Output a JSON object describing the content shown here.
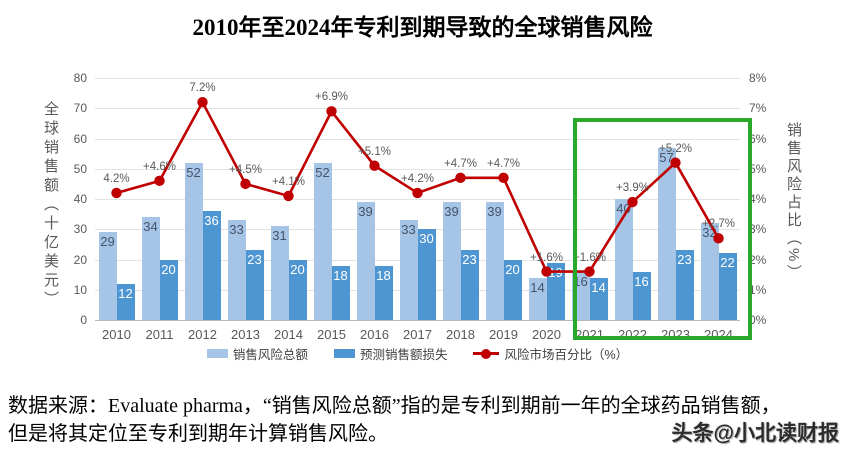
{
  "title": "2010年至2024年专利到期导致的全球销售风险",
  "chart_data": {
    "type": "bar",
    "subtype": "grouped-bars-with-line-overlay",
    "categories": [
      "2010",
      "2011",
      "2012",
      "2013",
      "2014",
      "2015",
      "2016",
      "2017",
      "2018",
      "2019",
      "2020",
      "2021",
      "2022",
      "2023",
      "2024"
    ],
    "series": [
      {
        "name": "销售风险总额",
        "type": "bar",
        "color": "#a6c4e6",
        "values": [
          29,
          34,
          52,
          33,
          31,
          52,
          39,
          33,
          39,
          39,
          14,
          16,
          40,
          57,
          32
        ]
      },
      {
        "name": "预测销售额损失",
        "type": "bar",
        "color": "#4e96d2",
        "values": [
          12,
          20,
          36,
          23,
          20,
          18,
          18,
          30,
          23,
          20,
          19,
          14,
          16,
          23,
          22
        ]
      },
      {
        "name": "风险市场百分比（%）",
        "type": "line",
        "color": "#c00000",
        "values": [
          4.2,
          4.6,
          7.2,
          4.5,
          4.1,
          6.9,
          5.1,
          4.2,
          4.7,
          4.7,
          1.6,
          1.6,
          3.9,
          5.2,
          2.7
        ],
        "point_labels": [
          "4.2%",
          "+4.6%",
          "7.2%",
          "+4.5%",
          "+4.1%",
          "+6.9%",
          "+5.1%",
          "+4.2%",
          "+4.7%",
          "+4.7%",
          "+1.6%",
          "+1.6%",
          "+3.9%",
          "+5.2%",
          "+2.7%"
        ]
      }
    ],
    "left_axis": {
      "title": "全球销售额（十亿美元）",
      "min": 0,
      "max": 80,
      "step": 10,
      "ticks": [
        "80",
        "70",
        "60",
        "50",
        "40",
        "30",
        "20",
        "10",
        "0"
      ]
    },
    "right_axis": {
      "title": "销售风险占比（%）",
      "min": 0,
      "max": 8,
      "step": 1,
      "ticks": [
        "8%",
        "7%",
        "6%",
        "5%",
        "4%",
        "3%",
        "2%",
        "1%",
        "0%"
      ]
    },
    "highlight_box": {
      "from": "2021",
      "to": "2024",
      "color": "#2aa82c"
    },
    "grid": true,
    "legend_position": "bottom"
  },
  "legend": [
    {
      "label": "销售风险总额",
      "color": "#a6c4e6",
      "marker": "square"
    },
    {
      "label": "预测销售额损失",
      "color": "#4e96d2",
      "marker": "square"
    },
    {
      "label": "风险市场百分比（%）",
      "color": "#c00000",
      "marker": "line-dot"
    }
  ],
  "source_note": {
    "line1": "数据来源：Evaluate pharma，“销售风险总额”指的是专利到期前一年的全球药品销售额，",
    "line2": "但是将其定位至专利到期年计算销售风险。"
  },
  "watermark": "头条@小北读财报",
  "colors": {
    "bar_light": "#a6c4e6",
    "bar_dark": "#4e96d2",
    "line": "#c00000",
    "highlight": "#2aa82c",
    "bar_label_navy": "#44546a",
    "axis_text": "#595959"
  }
}
